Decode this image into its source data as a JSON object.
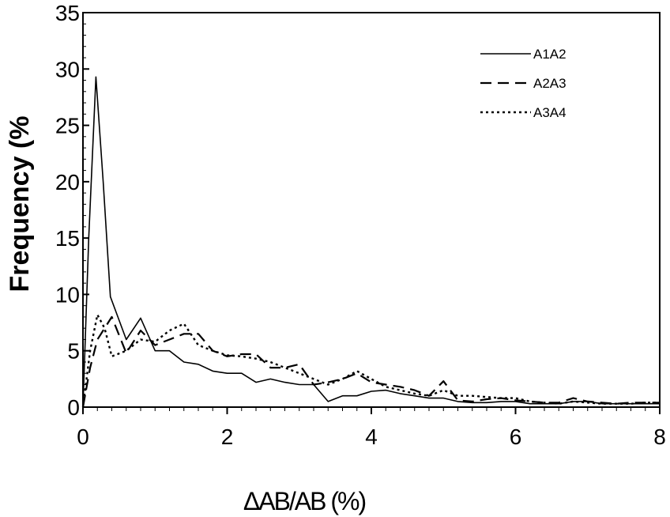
{
  "chart_data": {
    "type": "line",
    "title": "",
    "xlabel": "ΔAB/AB (%)",
    "ylabel": "Frequency (%",
    "xlim": [
      0,
      8
    ],
    "ylim": [
      0,
      35
    ],
    "xticks": [
      "0",
      "2",
      "4",
      "6",
      "8"
    ],
    "yticks": [
      "0",
      "5",
      "10",
      "15",
      "20",
      "25",
      "30",
      "35"
    ],
    "grid": false,
    "legend_position": "top-right",
    "series": [
      {
        "name": "A1A2",
        "style": "solid",
        "x": [
          0,
          0.08,
          0.18,
          0.28,
          0.38,
          0.6,
          0.8,
          1.0,
          1.2,
          1.4,
          1.6,
          1.8,
          2.0,
          2.2,
          2.4,
          2.6,
          2.8,
          3.0,
          3.2,
          3.4,
          3.6,
          3.8,
          4.0,
          4.2,
          4.4,
          4.6,
          4.8,
          5.0,
          5.2,
          5.4,
          5.6,
          5.8,
          6.0,
          6.2,
          6.4,
          6.6,
          6.8,
          7.0,
          7.2,
          7.4,
          7.6,
          7.8,
          8.0
        ],
        "y": [
          0,
          15,
          29.3,
          20,
          9.8,
          6.0,
          7.9,
          5.0,
          5.0,
          4.0,
          3.8,
          3.2,
          3.0,
          3.0,
          2.2,
          2.5,
          2.2,
          2.0,
          2.0,
          0.5,
          1.0,
          1.0,
          1.4,
          1.5,
          1.2,
          1.0,
          0.8,
          0.8,
          0.5,
          0.4,
          0.4,
          0.5,
          0.5,
          0.3,
          0.3,
          0.3,
          0.5,
          0.5,
          0.3,
          0.3,
          0.3,
          0.3,
          0.3
        ]
      },
      {
        "name": "A2A3",
        "style": "dashed",
        "x": [
          0,
          0.1,
          0.2,
          0.3,
          0.4,
          0.6,
          0.8,
          1.0,
          1.2,
          1.4,
          1.6,
          1.8,
          2.0,
          2.2,
          2.4,
          2.6,
          2.8,
          3.0,
          3.2,
          3.4,
          3.6,
          3.8,
          4.0,
          4.2,
          4.4,
          4.6,
          4.8,
          5.0,
          5.2,
          5.4,
          5.6,
          5.8,
          6.0,
          6.2,
          6.4,
          6.6,
          6.8,
          7.0,
          7.2,
          7.4,
          7.6,
          7.8,
          8.0
        ],
        "y": [
          0,
          3.5,
          6.0,
          7.0,
          8.0,
          4.8,
          6.8,
          5.5,
          6.0,
          6.5,
          6.5,
          5.0,
          4.5,
          4.7,
          4.7,
          3.5,
          3.5,
          3.8,
          2.0,
          2.2,
          2.5,
          3.0,
          2.2,
          2.0,
          1.8,
          1.5,
          1.0,
          2.3,
          0.6,
          0.5,
          0.7,
          0.8,
          0.6,
          0.5,
          0.4,
          0.4,
          0.8,
          0.5,
          0.4,
          0.3,
          0.4,
          0.4,
          0.4
        ]
      },
      {
        "name": "A3A4",
        "style": "dotted",
        "x": [
          0,
          0.1,
          0.2,
          0.3,
          0.4,
          0.6,
          0.8,
          1.0,
          1.2,
          1.4,
          1.6,
          1.8,
          2.0,
          2.2,
          2.4,
          2.6,
          2.8,
          3.0,
          3.2,
          3.4,
          3.6,
          3.8,
          4.0,
          4.2,
          4.4,
          4.6,
          4.8,
          5.0,
          5.2,
          5.4,
          5.6,
          5.8,
          6.0,
          6.2,
          6.4,
          6.6,
          6.8,
          7.0,
          7.2,
          7.4,
          7.6,
          7.8,
          8.0
        ],
        "y": [
          0,
          5.0,
          8.2,
          7.0,
          4.5,
          5.0,
          6.0,
          5.8,
          6.8,
          7.4,
          5.5,
          5.0,
          4.6,
          4.5,
          4.3,
          4.0,
          3.5,
          3.0,
          2.5,
          2.0,
          2.5,
          3.2,
          2.5,
          1.8,
          1.5,
          1.2,
          1.0,
          1.5,
          1.0,
          1.0,
          0.9,
          0.8,
          0.8,
          0.5,
          0.4,
          0.3,
          0.5,
          0.4,
          0.3,
          0.3,
          0.3,
          0.4,
          0.4
        ]
      }
    ]
  }
}
